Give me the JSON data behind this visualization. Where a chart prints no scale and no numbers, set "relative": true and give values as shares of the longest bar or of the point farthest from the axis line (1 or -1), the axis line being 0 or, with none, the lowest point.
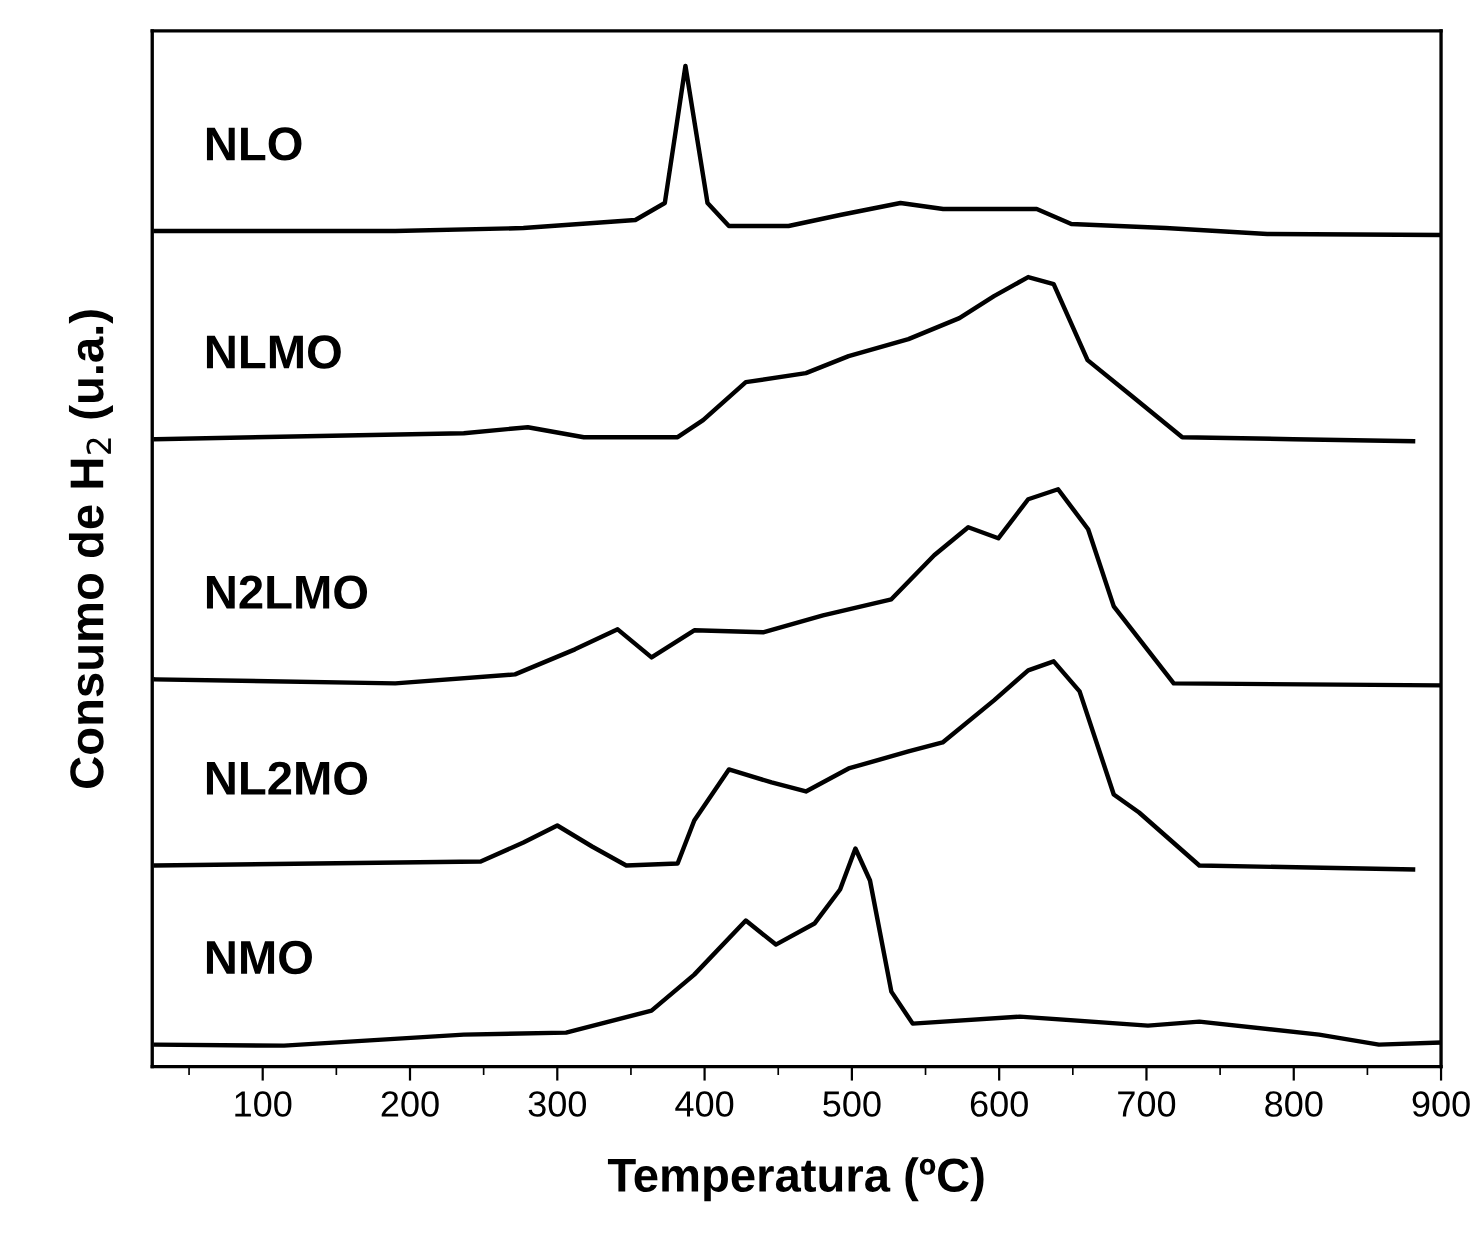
{
  "chart_data": {
    "type": "line",
    "relative": true,
    "xlabel": "Temperatura (ºC)",
    "ylabel": "Consumo de H$_{2}$ (u.a.)",
    "xlim": [
      25,
      900
    ],
    "xticks": [
      100,
      200,
      300,
      400,
      500,
      600,
      700,
      800,
      900
    ],
    "tick_labels": "x",
    "grid": false,
    "marker": "none",
    "line_style": "solid",
    "series": [
      {
        "name": "NLO",
        "color": "#000000",
        "x": [
          27.4,
          190,
          277,
          353,
          373,
          380.5,
          387,
          394,
          402,
          416.5,
          457,
          492,
          533,
          562,
          596.5,
          625.5,
          649,
          713,
          782,
          898.5
        ],
        "values": [
          0.835,
          0.835,
          0.838,
          0.846,
          0.863,
          0.936,
          1.0,
          0.936,
          0.863,
          0.84,
          0.84,
          0.851,
          0.863,
          0.857,
          0.857,
          0.857,
          0.842,
          0.838,
          0.832,
          0.831
        ]
      },
      {
        "name": "NLMO",
        "color": "#000000",
        "x": [
          27.4,
          236.5,
          280,
          318,
          381.7,
          399,
          428,
          468.8,
          497.8,
          538.4,
          573,
          596.5,
          619.7,
          637,
          660,
          689.4,
          724.3,
          799.8,
          881
        ],
        "values": [
          0.627,
          0.633,
          0.639,
          0.629,
          0.629,
          0.646,
          0.684,
          0.693,
          0.71,
          0.727,
          0.748,
          0.77,
          0.789,
          0.782,
          0.706,
          0.671,
          0.629,
          0.627,
          0.625
        ]
      },
      {
        "name": "N2LMO",
        "color": "#000000",
        "x": [
          27.4,
          190,
          271.3,
          312,
          341,
          364,
          393,
          439.7,
          480.4,
          526.8,
          555.9,
          579,
          599.4,
          619.7,
          640,
          660.4,
          677.8,
          718.5,
          898.5
        ],
        "values": [
          0.387,
          0.383,
          0.392,
          0.417,
          0.437,
          0.409,
          0.436,
          0.434,
          0.451,
          0.467,
          0.511,
          0.539,
          0.528,
          0.567,
          0.577,
          0.537,
          0.46,
          0.383,
          0.381
        ]
      },
      {
        "name": "NL2MO",
        "color": "#000000",
        "x": [
          27.4,
          248,
          277,
          300,
          323.6,
          346.8,
          381.7,
          393,
          416.5,
          445.5,
          468.8,
          497.8,
          538.4,
          561.6,
          596.5,
          619.7,
          637,
          654.6,
          677.8,
          695,
          735.9,
          881
        ],
        "values": [
          0.201,
          0.205,
          0.224,
          0.241,
          0.22,
          0.201,
          0.203,
          0.246,
          0.297,
          0.284,
          0.275,
          0.298,
          0.315,
          0.324,
          0.366,
          0.396,
          0.405,
          0.375,
          0.272,
          0.254,
          0.201,
          0.197
        ]
      },
      {
        "name": "NMO",
        "color": "#000000",
        "x": [
          27.4,
          114.5,
          236.5,
          306,
          364,
          393,
          428,
          448.4,
          474.6,
          492,
          502.4,
          512.3,
          526.8,
          541.3,
          614,
          701,
          735.9,
          817.2,
          857.8,
          898.5
        ],
        "values": [
          0.022,
          0.021,
          0.032,
          0.034,
          0.056,
          0.092,
          0.146,
          0.122,
          0.143,
          0.177,
          0.218,
          0.186,
          0.075,
          0.043,
          0.05,
          0.041,
          0.045,
          0.032,
          0.022,
          0.024
        ]
      }
    ]
  }
}
